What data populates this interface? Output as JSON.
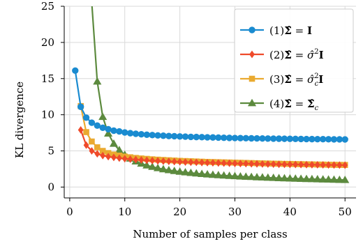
{
  "chart_data": {
    "type": "line",
    "title": "",
    "xlabel": "Number of samples per class",
    "ylabel": "KL divergence",
    "xlim": [
      -1,
      52
    ],
    "ylim": [
      -1.5,
      25
    ],
    "xticks": [
      0,
      10,
      20,
      30,
      40,
      50
    ],
    "yticks": [
      0,
      5,
      10,
      15,
      20,
      25
    ],
    "grid": true,
    "legend_position": "top-right",
    "series": [
      {
        "name": "(1)Σ̂ = I",
        "legend": {
          "prefix": "(1)",
          "lhs": "Σ̂",
          "rhs": "I",
          "rhs_sup": "",
          "rhs_sub": ""
        },
        "color": "#1a8bd0",
        "marker": "circle",
        "x": [
          1,
          2,
          3,
          4,
          5,
          6,
          7,
          8,
          9,
          10,
          11,
          12,
          13,
          14,
          15,
          16,
          17,
          18,
          19,
          20,
          21,
          22,
          23,
          24,
          25,
          26,
          27,
          28,
          29,
          30,
          31,
          32,
          33,
          34,
          35,
          36,
          37,
          38,
          39,
          40,
          41,
          42,
          43,
          44,
          45,
          46,
          47,
          48,
          49,
          50
        ],
        "y": [
          16.1,
          11.1,
          9.6,
          8.9,
          8.5,
          8.2,
          8.0,
          7.8,
          7.7,
          7.55,
          7.45,
          7.37,
          7.3,
          7.24,
          7.19,
          7.14,
          7.1,
          7.06,
          7.03,
          7.0,
          6.97,
          6.94,
          6.92,
          6.9,
          6.88,
          6.86,
          6.84,
          6.82,
          6.8,
          6.78,
          6.77,
          6.76,
          6.74,
          6.73,
          6.72,
          6.71,
          6.7,
          6.69,
          6.68,
          6.67,
          6.66,
          6.65,
          6.64,
          6.63,
          6.62,
          6.62,
          6.61,
          6.6,
          6.6,
          6.59
        ]
      },
      {
        "name": "(2)Σ̂ = σ̂²I",
        "legend": {
          "prefix": "(2)",
          "lhs": "Σ̂",
          "rhs": "σ̂",
          "rhs_sup": "2",
          "rhs_sub": "",
          "rhs_tail": "I"
        },
        "color": "#ef4a2a",
        "marker": "diamond",
        "x": [
          2,
          3,
          4,
          5,
          6,
          7,
          8,
          9,
          10,
          11,
          12,
          13,
          14,
          15,
          16,
          17,
          18,
          19,
          20,
          21,
          22,
          23,
          24,
          25,
          26,
          27,
          28,
          29,
          30,
          31,
          32,
          33,
          34,
          35,
          36,
          37,
          38,
          39,
          40,
          41,
          42,
          43,
          44,
          45,
          46,
          47,
          48,
          49,
          50
        ],
        "y": [
          7.9,
          5.8,
          5.0,
          4.6,
          4.35,
          4.2,
          4.1,
          4.0,
          3.92,
          3.85,
          3.8,
          3.75,
          3.7,
          3.66,
          3.62,
          3.58,
          3.55,
          3.52,
          3.49,
          3.46,
          3.44,
          3.42,
          3.39,
          3.37,
          3.35,
          3.33,
          3.31,
          3.29,
          3.27,
          3.25,
          3.24,
          3.22,
          3.21,
          3.19,
          3.18,
          3.17,
          3.15,
          3.14,
          3.13,
          3.12,
          3.11,
          3.1,
          3.09,
          3.08,
          3.07,
          3.06,
          3.05,
          3.04,
          3.03
        ]
      },
      {
        "name": "(3)Σ̂ = σ̂c²I",
        "legend": {
          "prefix": "(3)",
          "lhs": "Σ̂",
          "rhs": "σ̂",
          "rhs_sup": "2",
          "rhs_sub": "c",
          "rhs_tail": "I"
        },
        "color": "#eaaa30",
        "marker": "square",
        "x": [
          2,
          3,
          4,
          5,
          6,
          7,
          8,
          9,
          10,
          11,
          12,
          13,
          14,
          15,
          16,
          17,
          18,
          19,
          20,
          21,
          22,
          23,
          24,
          25,
          26,
          27,
          28,
          29,
          30,
          31,
          32,
          33,
          34,
          35,
          36,
          37,
          38,
          39,
          40,
          41,
          42,
          43,
          44,
          45,
          46,
          47,
          48,
          49,
          50
        ],
        "y": [
          11.2,
          7.6,
          6.3,
          5.5,
          5.0,
          4.7,
          4.5,
          4.35,
          4.22,
          4.12,
          4.03,
          3.96,
          3.9,
          3.84,
          3.79,
          3.75,
          3.71,
          3.67,
          3.63,
          3.6,
          3.57,
          3.54,
          3.51,
          3.48,
          3.46,
          3.44,
          3.42,
          3.4,
          3.38,
          3.36,
          3.34,
          3.32,
          3.3,
          3.28,
          3.26,
          3.24,
          3.23,
          3.21,
          3.2,
          3.18,
          3.17,
          3.15,
          3.14,
          3.12,
          3.11,
          3.09,
          3.08,
          3.07,
          3.06
        ]
      },
      {
        "name": "(4)Σ̂ = Σ̂c",
        "legend": {
          "prefix": "(4)",
          "lhs": "Σ̂",
          "rhs": "Σ̂",
          "rhs_sup": "",
          "rhs_sub": "c",
          "rhs_tail": ""
        },
        "color": "#5c8a3e",
        "marker": "triangle",
        "x": [
          4,
          5,
          6,
          7,
          8,
          9,
          10,
          11,
          12,
          13,
          14,
          15,
          16,
          17,
          18,
          19,
          20,
          21,
          22,
          23,
          24,
          25,
          26,
          27,
          28,
          29,
          30,
          31,
          32,
          33,
          34,
          35,
          36,
          37,
          38,
          39,
          40,
          41,
          42,
          43,
          44,
          45,
          46,
          47,
          48,
          49,
          50
        ],
        "y": [
          25.5,
          14.6,
          9.7,
          7.4,
          6.0,
          5.1,
          4.45,
          3.95,
          3.55,
          3.25,
          3.0,
          2.8,
          2.62,
          2.47,
          2.34,
          2.23,
          2.13,
          2.04,
          1.96,
          1.89,
          1.82,
          1.76,
          1.7,
          1.65,
          1.6,
          1.55,
          1.51,
          1.47,
          1.43,
          1.4,
          1.36,
          1.33,
          1.3,
          1.27,
          1.24,
          1.21,
          1.19,
          1.17,
          1.14,
          1.12,
          1.1,
          1.08,
          1.06,
          1.04,
          1.02,
          1.0,
          0.98
        ]
      }
    ]
  }
}
